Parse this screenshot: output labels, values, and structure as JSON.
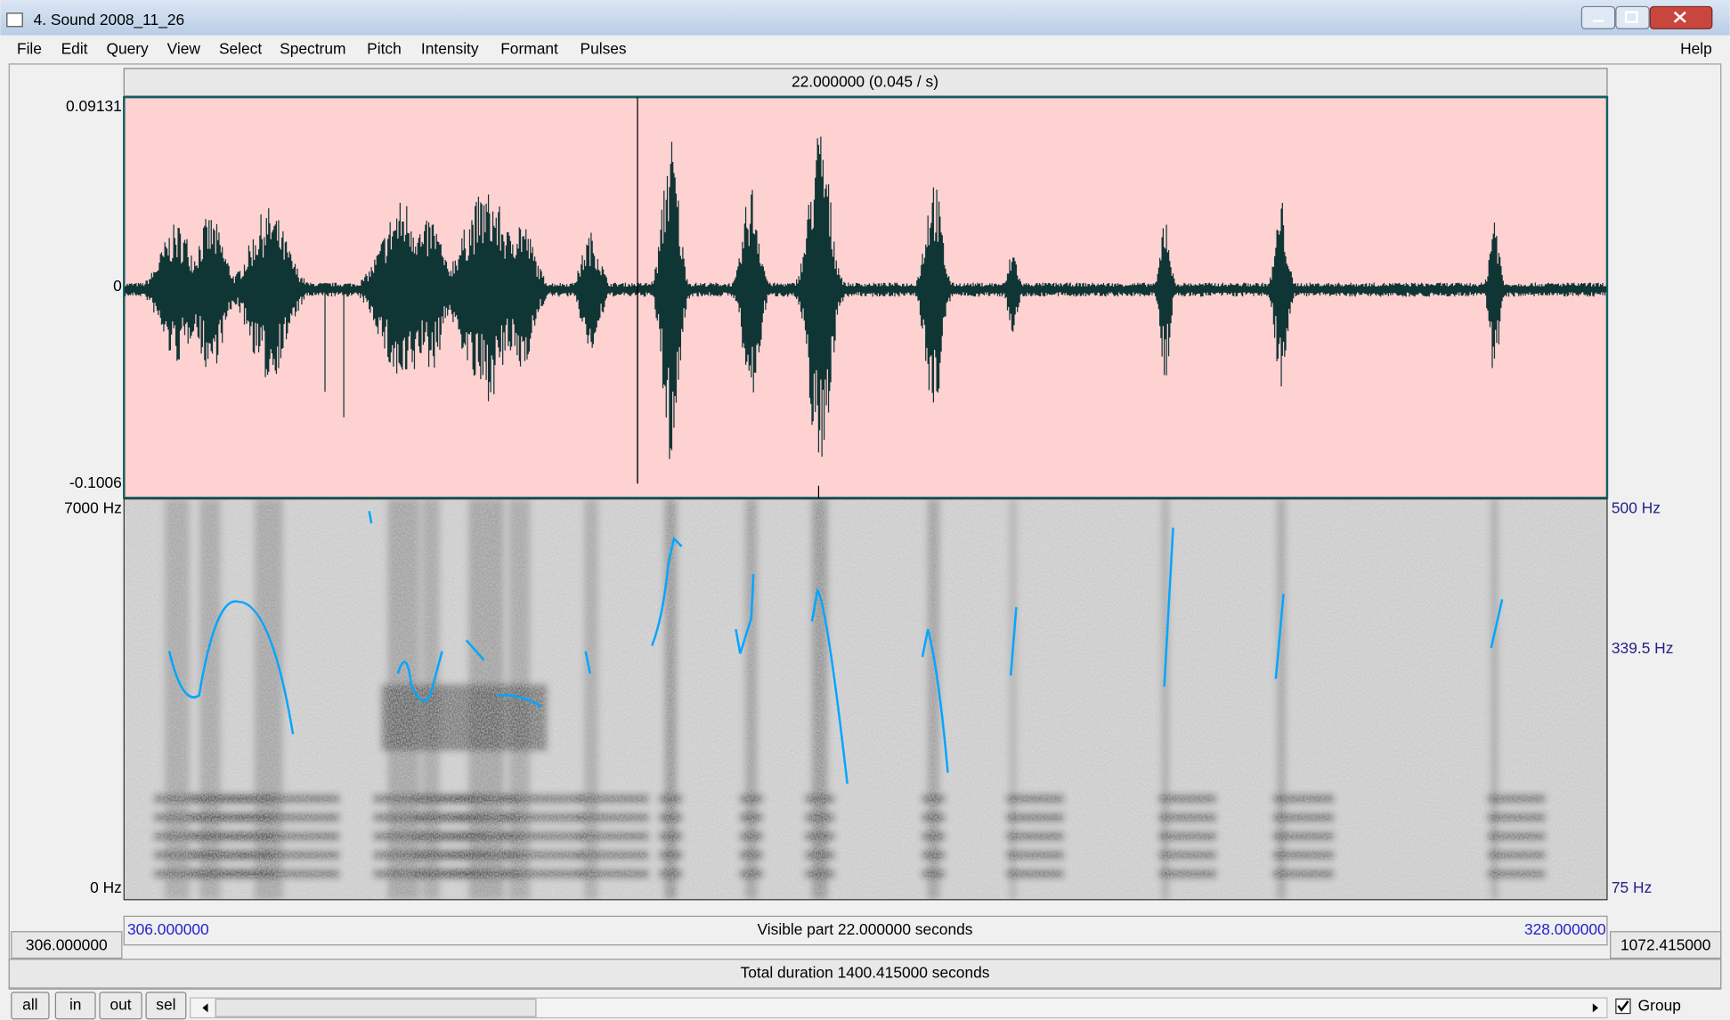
{
  "window": {
    "title": "4. Sound 2008_11_26"
  },
  "menu": {
    "items": [
      "File",
      "Edit",
      "Query",
      "View",
      "Select",
      "Spectrum",
      "Pitch",
      "Intensity",
      "Formant",
      "Pulses"
    ],
    "help": "Help"
  },
  "editor": {
    "selection_label": "22.000000 (0.045 / s)",
    "waveform": {
      "max_label": "0.09131",
      "zero_label": "0",
      "min_label": "-0.1006"
    },
    "spectrogram": {
      "top_label": "7000 Hz",
      "bottom_label": "0 Hz",
      "pitch_top": "500 Hz",
      "pitch_mid": "339.5 Hz",
      "pitch_bottom": "75 Hz"
    },
    "visible": {
      "start": "306.000000",
      "label": "Visible part 22.000000 seconds",
      "end": "328.000000"
    },
    "window_start": "306.000000",
    "window_end": "1072.415000",
    "total": "Total duration 1400.415000 seconds"
  },
  "buttons": [
    "all",
    "in",
    "out",
    "sel"
  ],
  "group": "Group"
}
